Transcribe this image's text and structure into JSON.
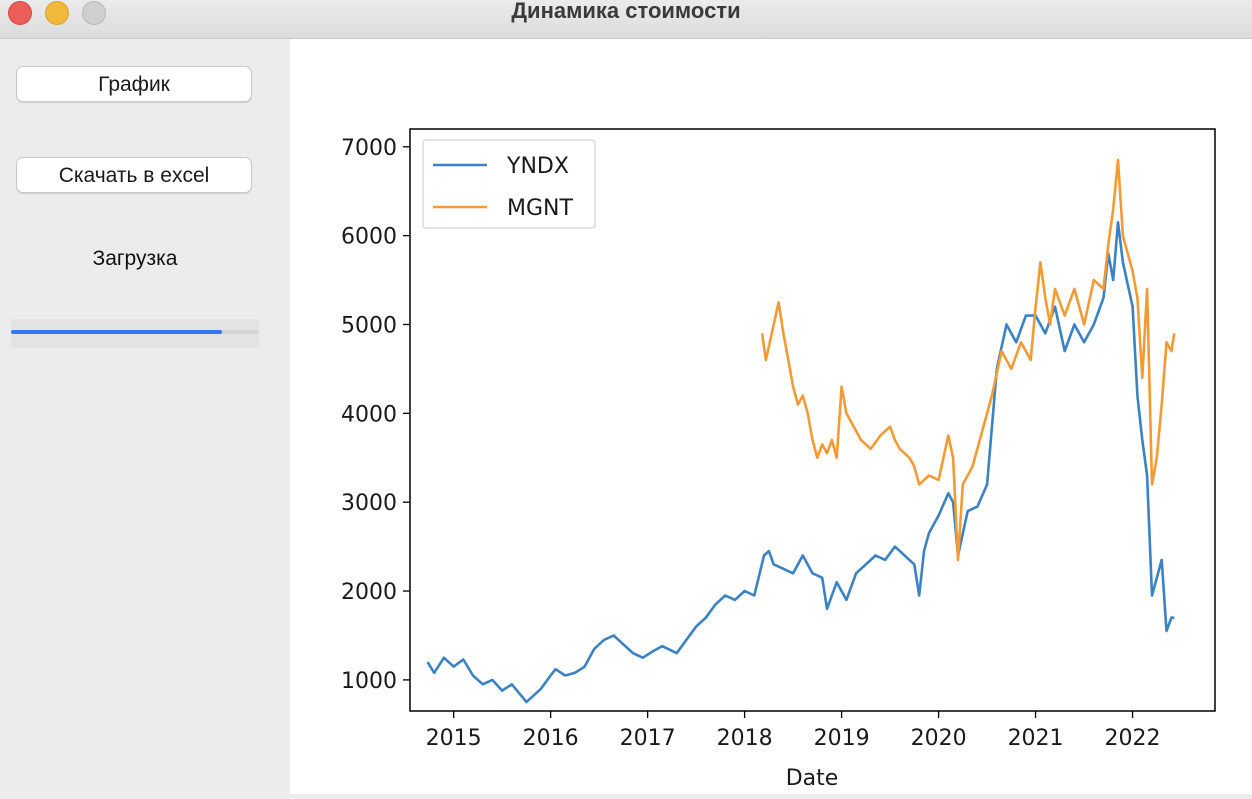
{
  "window": {
    "title": "Динамика стоимости"
  },
  "buttons": {
    "plot_label": "График",
    "excel_label": "Скачать в excel"
  },
  "status": {
    "label": "Загрузка",
    "progress": 0.85
  },
  "colors": {
    "accent": "#3478f6",
    "yndx": "#3b82c4",
    "mgnt": "#f39a35"
  },
  "chart_data": {
    "type": "line",
    "xlabel": "Date",
    "ylabel": "",
    "xlim": [
      2014.55,
      2022.85
    ],
    "ylim": [
      650,
      7200
    ],
    "xticks": [
      2015,
      2016,
      2017,
      2018,
      2019,
      2020,
      2021,
      2022
    ],
    "xtick_labels": [
      "2015",
      "2016",
      "2017",
      "2018",
      "2019",
      "2020",
      "2021",
      "2022"
    ],
    "yticks": [
      1000,
      2000,
      3000,
      4000,
      5000,
      6000,
      7000
    ],
    "ytick_labels": [
      "1000",
      "2000",
      "3000",
      "4000",
      "5000",
      "6000",
      "7000"
    ],
    "legend_position": "top-left",
    "series": [
      {
        "name": "YNDX",
        "points": [
          [
            2014.73,
            1200
          ],
          [
            2014.8,
            1080
          ],
          [
            2014.9,
            1250
          ],
          [
            2015.0,
            1150
          ],
          [
            2015.1,
            1230
          ],
          [
            2015.2,
            1050
          ],
          [
            2015.3,
            950
          ],
          [
            2015.4,
            1000
          ],
          [
            2015.5,
            880
          ],
          [
            2015.6,
            950
          ],
          [
            2015.7,
            820
          ],
          [
            2015.75,
            750
          ],
          [
            2015.8,
            800
          ],
          [
            2015.9,
            900
          ],
          [
            2016.0,
            1050
          ],
          [
            2016.05,
            1120
          ],
          [
            2016.15,
            1050
          ],
          [
            2016.25,
            1080
          ],
          [
            2016.35,
            1150
          ],
          [
            2016.45,
            1350
          ],
          [
            2016.55,
            1450
          ],
          [
            2016.65,
            1500
          ],
          [
            2016.75,
            1400
          ],
          [
            2016.85,
            1300
          ],
          [
            2016.95,
            1250
          ],
          [
            2017.05,
            1320
          ],
          [
            2017.15,
            1380
          ],
          [
            2017.3,
            1300
          ],
          [
            2017.4,
            1450
          ],
          [
            2017.5,
            1600
          ],
          [
            2017.6,
            1700
          ],
          [
            2017.7,
            1850
          ],
          [
            2017.8,
            1950
          ],
          [
            2017.9,
            1900
          ],
          [
            2018.0,
            2000
          ],
          [
            2018.1,
            1950
          ],
          [
            2018.2,
            2400
          ],
          [
            2018.25,
            2450
          ],
          [
            2018.3,
            2300
          ],
          [
            2018.4,
            2250
          ],
          [
            2018.5,
            2200
          ],
          [
            2018.6,
            2400
          ],
          [
            2018.7,
            2200
          ],
          [
            2018.8,
            2150
          ],
          [
            2018.85,
            1800
          ],
          [
            2018.95,
            2100
          ],
          [
            2019.05,
            1900
          ],
          [
            2019.15,
            2200
          ],
          [
            2019.25,
            2300
          ],
          [
            2019.35,
            2400
          ],
          [
            2019.45,
            2350
          ],
          [
            2019.55,
            2500
          ],
          [
            2019.65,
            2400
          ],
          [
            2019.75,
            2300
          ],
          [
            2019.8,
            1950
          ],
          [
            2019.85,
            2450
          ],
          [
            2019.9,
            2650
          ],
          [
            2020.0,
            2850
          ],
          [
            2020.1,
            3100
          ],
          [
            2020.15,
            3000
          ],
          [
            2020.2,
            2400
          ],
          [
            2020.3,
            2900
          ],
          [
            2020.4,
            2950
          ],
          [
            2020.5,
            3200
          ],
          [
            2020.6,
            4500
          ],
          [
            2020.7,
            5000
          ],
          [
            2020.8,
            4800
          ],
          [
            2020.9,
            5100
          ],
          [
            2021.0,
            5100
          ],
          [
            2021.1,
            4900
          ],
          [
            2021.2,
            5200
          ],
          [
            2021.3,
            4700
          ],
          [
            2021.4,
            5000
          ],
          [
            2021.5,
            4800
          ],
          [
            2021.6,
            5000
          ],
          [
            2021.7,
            5300
          ],
          [
            2021.75,
            5800
          ],
          [
            2021.8,
            5500
          ],
          [
            2021.85,
            6150
          ],
          [
            2021.9,
            5700
          ],
          [
            2022.0,
            5200
          ],
          [
            2022.05,
            4200
          ],
          [
            2022.1,
            3700
          ],
          [
            2022.15,
            3300
          ],
          [
            2022.2,
            1950
          ],
          [
            2022.3,
            2350
          ],
          [
            2022.35,
            1550
          ],
          [
            2022.4,
            1700
          ],
          [
            2022.43,
            1700
          ]
        ]
      },
      {
        "name": "MGNT",
        "points": [
          [
            2018.18,
            4900
          ],
          [
            2018.22,
            4600
          ],
          [
            2018.28,
            4900
          ],
          [
            2018.35,
            5250
          ],
          [
            2018.4,
            4900
          ],
          [
            2018.45,
            4600
          ],
          [
            2018.5,
            4300
          ],
          [
            2018.55,
            4100
          ],
          [
            2018.6,
            4200
          ],
          [
            2018.65,
            4000
          ],
          [
            2018.7,
            3700
          ],
          [
            2018.75,
            3500
          ],
          [
            2018.8,
            3650
          ],
          [
            2018.85,
            3550
          ],
          [
            2018.9,
            3700
          ],
          [
            2018.95,
            3500
          ],
          [
            2019.0,
            4300
          ],
          [
            2019.05,
            4000
          ],
          [
            2019.1,
            3900
          ],
          [
            2019.2,
            3700
          ],
          [
            2019.3,
            3600
          ],
          [
            2019.4,
            3750
          ],
          [
            2019.5,
            3850
          ],
          [
            2019.55,
            3700
          ],
          [
            2019.6,
            3600
          ],
          [
            2019.7,
            3500
          ],
          [
            2019.75,
            3400
          ],
          [
            2019.8,
            3200
          ],
          [
            2019.9,
            3300
          ],
          [
            2020.0,
            3250
          ],
          [
            2020.1,
            3750
          ],
          [
            2020.15,
            3500
          ],
          [
            2020.2,
            2350
          ],
          [
            2020.25,
            3200
          ],
          [
            2020.35,
            3400
          ],
          [
            2020.45,
            3800
          ],
          [
            2020.55,
            4200
          ],
          [
            2020.65,
            4700
          ],
          [
            2020.75,
            4500
          ],
          [
            2020.85,
            4800
          ],
          [
            2020.95,
            4600
          ],
          [
            2021.0,
            5200
          ],
          [
            2021.05,
            5700
          ],
          [
            2021.1,
            5300
          ],
          [
            2021.15,
            5000
          ],
          [
            2021.2,
            5400
          ],
          [
            2021.3,
            5100
          ],
          [
            2021.4,
            5400
          ],
          [
            2021.5,
            5000
          ],
          [
            2021.6,
            5500
          ],
          [
            2021.7,
            5400
          ],
          [
            2021.75,
            5900
          ],
          [
            2021.8,
            6300
          ],
          [
            2021.85,
            6850
          ],
          [
            2021.9,
            6000
          ],
          [
            2022.0,
            5600
          ],
          [
            2022.05,
            5300
          ],
          [
            2022.1,
            4400
          ],
          [
            2022.15,
            5400
          ],
          [
            2022.2,
            3200
          ],
          [
            2022.25,
            3500
          ],
          [
            2022.3,
            4100
          ],
          [
            2022.35,
            4800
          ],
          [
            2022.4,
            4700
          ],
          [
            2022.43,
            4900
          ]
        ]
      }
    ]
  }
}
